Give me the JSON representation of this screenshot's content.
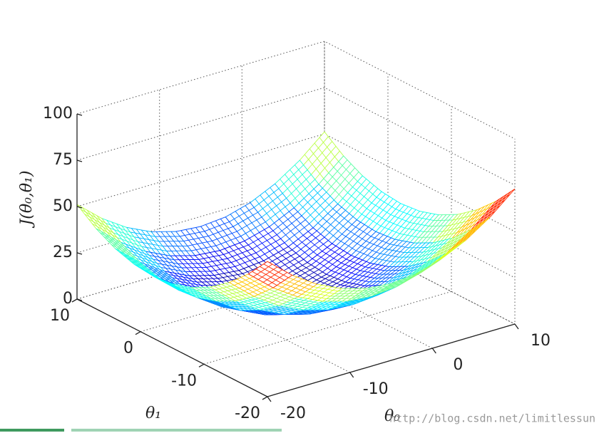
{
  "chart_data": {
    "type": "surface",
    "xlabel": "θ₀",
    "ylabel": "θ₁",
    "zlabel": "J(θ₀,θ₁)",
    "x": [
      -20,
      -17,
      -14,
      -11,
      -8,
      -5,
      -2,
      1,
      4,
      7,
      10
    ],
    "y": [
      -20,
      -17,
      -14,
      -11,
      -8,
      -5,
      -2,
      1,
      4,
      7,
      10
    ],
    "z": [
      [
        73.0,
        61.7,
        52.9,
        46.6,
        42.8,
        41.5,
        42.8,
        46.6,
        52.9,
        61.7,
        73.0
      ],
      [
        61.0,
        49.6,
        40.8,
        34.5,
        30.7,
        29.5,
        30.7,
        34.5,
        40.8,
        49.6,
        61.0
      ],
      [
        51.1,
        39.7,
        30.9,
        24.6,
        20.8,
        19.6,
        20.8,
        24.6,
        30.9,
        39.7,
        51.1
      ],
      [
        43.4,
        32.0,
        23.2,
        16.9,
        13.1,
        11.9,
        13.1,
        16.9,
        23.2,
        32.0,
        43.4
      ],
      [
        37.9,
        26.6,
        17.7,
        11.4,
        7.7,
        6.4,
        7.7,
        11.4,
        17.7,
        26.6,
        37.9
      ],
      [
        34.6,
        23.3,
        14.4,
        8.1,
        4.4,
        3.1,
        4.4,
        8.1,
        14.4,
        23.3,
        34.6
      ],
      [
        33.5,
        22.2,
        13.3,
        7.0,
        3.3,
        2.0,
        3.3,
        7.0,
        13.3,
        22.2,
        33.5
      ],
      [
        34.6,
        23.3,
        14.4,
        8.1,
        4.4,
        3.1,
        4.4,
        8.1,
        14.4,
        23.3,
        34.6
      ],
      [
        37.9,
        26.6,
        17.7,
        11.4,
        7.7,
        6.4,
        7.7,
        11.4,
        17.7,
        26.6,
        37.9
      ],
      [
        43.4,
        32.0,
        23.2,
        16.9,
        13.1,
        11.9,
        13.1,
        16.9,
        23.2,
        32.0,
        43.4
      ],
      [
        51.1,
        39.7,
        30.9,
        24.6,
        20.8,
        19.6,
        20.8,
        24.6,
        30.9,
        39.7,
        51.1
      ]
    ],
    "xlim": [
      -20,
      10
    ],
    "ylim": [
      -20,
      10
    ],
    "zlim": [
      0,
      100
    ],
    "xticks": [
      -20,
      -10,
      0,
      10
    ],
    "yticks": [
      -20,
      -10,
      0,
      10
    ],
    "zticks": [
      0,
      25,
      50,
      75,
      100
    ],
    "grid": true,
    "colormap": "jet"
  },
  "watermark": "http://blog.csdn.net/limitlessun"
}
